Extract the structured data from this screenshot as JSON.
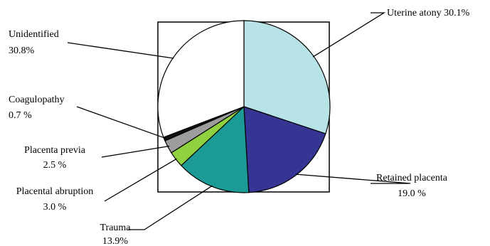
{
  "chart_data": {
    "type": "pie",
    "title": "",
    "start": "top",
    "direction": "clockwise",
    "border_box": true,
    "slices": [
      {
        "label": "Uterine atony",
        "value_text": "30.1%",
        "value": 30.1,
        "color": "#b7e2e6"
      },
      {
        "label": "Retained placenta",
        "value_text": "19.0 %",
        "value": 19.0,
        "color": "#353594"
      },
      {
        "label": "Trauma",
        "value_text": "13.9%",
        "value": 13.9,
        "color": "#1b9a96"
      },
      {
        "label": "Placental abruption",
        "value_text": "3.0 %",
        "value": 3.0,
        "color": "#8fd13f"
      },
      {
        "label": "Placenta previa",
        "value_text": "2.5 %",
        "value": 2.5,
        "color": "#9d9d9d"
      },
      {
        "label": "Coagulopathy",
        "value_text": "0.7 %",
        "value": 0.7,
        "color": "#111111"
      },
      {
        "label": "Unidentified",
        "value_text": "30.8%",
        "value": 30.8,
        "color": "#ffffff"
      }
    ]
  }
}
